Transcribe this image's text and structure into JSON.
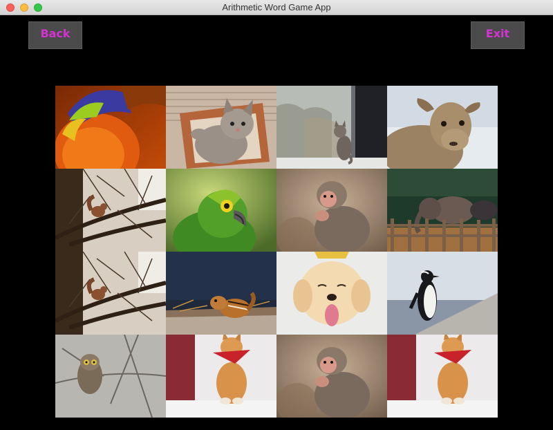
{
  "window": {
    "title": "Arithmetic Word Game App"
  },
  "nav": {
    "back_label": "Back",
    "exit_label": "Exit",
    "label_color": "#d433d4"
  },
  "tiles": [
    {
      "row": 1,
      "col": 1,
      "subject": "rainbow-lorikeet"
    },
    {
      "row": 1,
      "col": 2,
      "subject": "kitten-in-basket"
    },
    {
      "row": 1,
      "col": 3,
      "subject": "cat-at-window"
    },
    {
      "row": 1,
      "col": 4,
      "subject": "sheep"
    },
    {
      "row": 2,
      "col": 1,
      "subject": "squirrel-in-tree"
    },
    {
      "row": 2,
      "col": 2,
      "subject": "green-parrot"
    },
    {
      "row": 2,
      "col": 3,
      "subject": "baby-monkey"
    },
    {
      "row": 2,
      "col": 4,
      "subject": "elephants-fence"
    },
    {
      "row": 3,
      "col": 1,
      "subject": "squirrel-in-tree"
    },
    {
      "row": 3,
      "col": 2,
      "subject": "chipmunk"
    },
    {
      "row": 3,
      "col": 3,
      "subject": "puppy-with-crown"
    },
    {
      "row": 3,
      "col": 4,
      "subject": "penguin"
    },
    {
      "row": 4,
      "col": 1,
      "subject": "owl"
    },
    {
      "row": 4,
      "col": 2,
      "subject": "cat-with-bandana"
    },
    {
      "row": 4,
      "col": 3,
      "subject": "baby-monkey"
    },
    {
      "row": 4,
      "col": 4,
      "subject": "cat-with-bandana"
    }
  ]
}
